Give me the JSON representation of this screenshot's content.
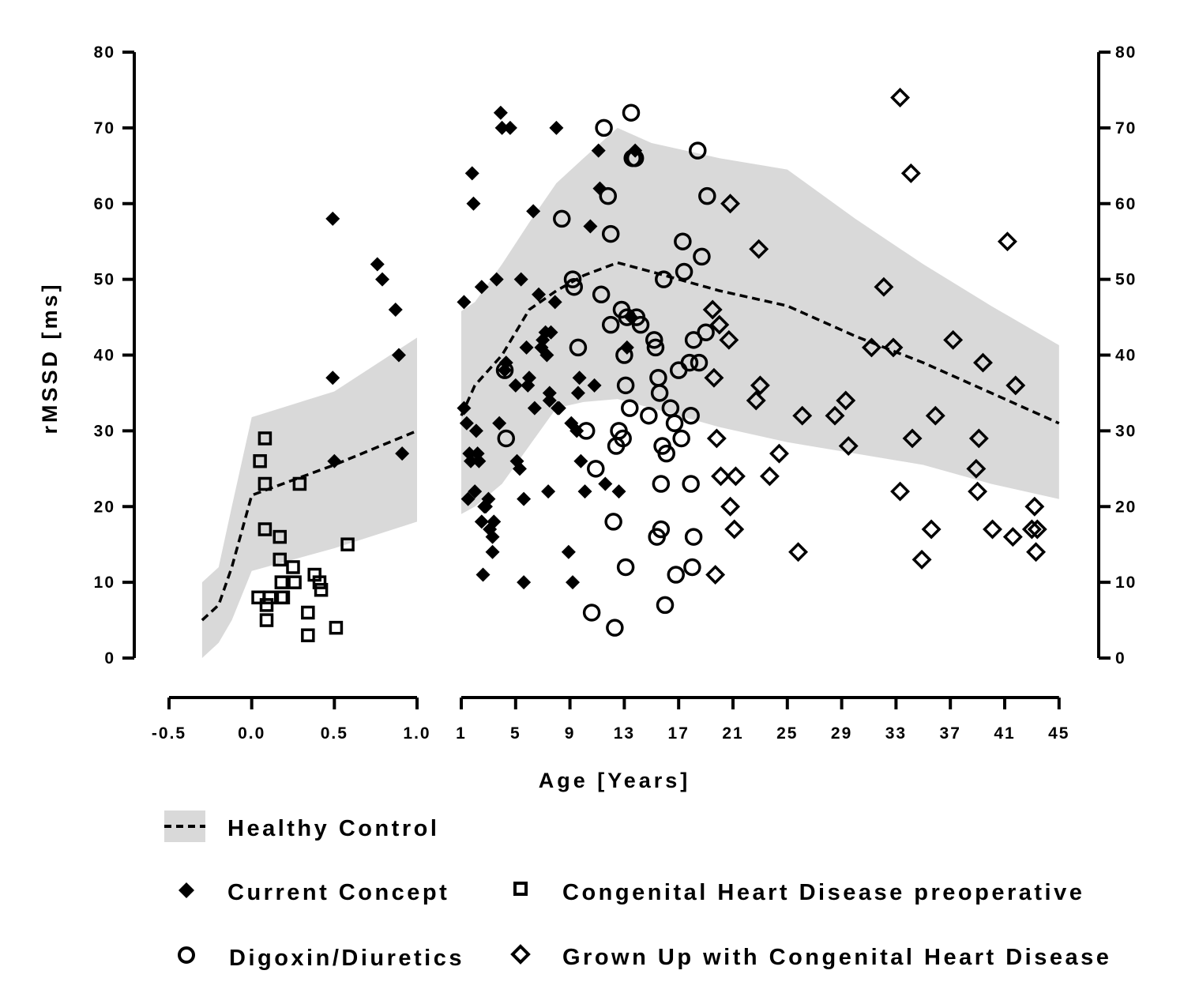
{
  "chart_data": {
    "type": "scatter",
    "ylabel": "rMSSD [ms]",
    "xlabel": "Age [Years]",
    "ylim": [
      0,
      80
    ],
    "y_ticks": [
      "0",
      "10",
      "20",
      "30",
      "40",
      "50",
      "60",
      "70",
      "80"
    ],
    "x_segments": [
      {
        "id": "infant",
        "range": [
          -0.5,
          1.0
        ],
        "ticks": [
          "-0.5",
          "0.0",
          "0.5",
          "1.0"
        ],
        "tick_values": [
          -0.5,
          0.0,
          0.5,
          1.0
        ]
      },
      {
        "id": "child_adult",
        "range": [
          1,
          45
        ],
        "ticks": [
          "1",
          "5",
          "9",
          "13",
          "17",
          "21",
          "25",
          "29",
          "33",
          "37",
          "41",
          "45"
        ],
        "tick_values": [
          1,
          5,
          9,
          13,
          17,
          21,
          25,
          29,
          33,
          37,
          41,
          45
        ]
      }
    ],
    "grid": false,
    "legend_position": "bottom",
    "healthy_control": {
      "name": "Healthy Control",
      "color": "#d9d9d9",
      "infant": {
        "x": [
          -0.3,
          -0.2,
          -0.12,
          0.0,
          0.5,
          1.0
        ],
        "mean": [
          5,
          7,
          12,
          21.5,
          25.5,
          30
        ],
        "upper": [
          10,
          12,
          20,
          31.8,
          35.2,
          42.3
        ],
        "lower": [
          0,
          2,
          5,
          11.5,
          14.5,
          18
        ]
      },
      "child": {
        "x": [
          1,
          2,
          4,
          6,
          8,
          10,
          12.5,
          15,
          20,
          25,
          30,
          35,
          40,
          45
        ],
        "mean": [
          32,
          36,
          40,
          46,
          48.5,
          50.5,
          52.2,
          51,
          48.5,
          46.5,
          42.5,
          39,
          35,
          31
        ],
        "upper": [
          45.8,
          47,
          52,
          57.5,
          62.7,
          66,
          70,
          68,
          66,
          64.5,
          58,
          52,
          46.5,
          41.3
        ],
        "lower": [
          19,
          20,
          23,
          28,
          33,
          33.8,
          34.2,
          33,
          30.5,
          28.5,
          27,
          25.5,
          23,
          21
        ]
      }
    },
    "series": [
      {
        "name": "Current Concept",
        "marker": "diamond-filled",
        "segment": "mixed",
        "infant_x": [
          0.49,
          0.49,
          0.5,
          0.76,
          0.79,
          0.87,
          0.89,
          0.91
        ],
        "infant_y": [
          58,
          37,
          26,
          52,
          50,
          46,
          40,
          27
        ],
        "x": [
          1.2,
          1.2,
          1.4,
          1.5,
          1.6,
          1.7,
          1.8,
          1.9,
          2.0,
          2.1,
          2.2,
          2.3,
          2.5,
          2.5,
          2.6,
          2.7,
          2.8,
          3.0,
          3.1,
          3.3,
          3.3,
          3.4,
          3.6,
          3.8,
          3.9,
          4.0,
          4.2,
          4.3,
          4.6,
          5.0,
          5.1,
          5.3,
          5.4,
          5.6,
          5.6,
          5.8,
          5.9,
          6.0,
          6.3,
          6.4,
          6.7,
          6.9,
          7.0,
          7.2,
          7.3,
          7.4,
          7.5,
          7.5,
          7.6,
          7.9,
          8.0,
          8.1,
          8.2,
          8.9,
          9.1,
          9.2,
          9.5,
          9.6,
          9.7,
          9.8,
          10.1,
          10.5,
          10.8,
          11.1,
          11.2,
          11.6,
          12.6,
          13.2,
          13.5,
          13.8
        ],
        "y": [
          47,
          33,
          31,
          21,
          27,
          26,
          64,
          60,
          22,
          30,
          27,
          26,
          49,
          18,
          11,
          20,
          20,
          21,
          17,
          16,
          14,
          18,
          50,
          31,
          72,
          70,
          38,
          39,
          70,
          36,
          26,
          25,
          50,
          21,
          10,
          41,
          36,
          37,
          59,
          33,
          48,
          41,
          42,
          43,
          40,
          22,
          35,
          34,
          43,
          47,
          70,
          33,
          33,
          14,
          31,
          10,
          30,
          35,
          37,
          26,
          22,
          57,
          36,
          67,
          62,
          23,
          22,
          41,
          45,
          67
        ]
      },
      {
        "name": "Congenital Heart Disease preoperative",
        "marker": "square-open",
        "segment": "infant",
        "x": [
          0.04,
          0.05,
          0.08,
          0.08,
          0.08,
          0.09,
          0.09,
          0.11,
          0.17,
          0.17,
          0.18,
          0.18,
          0.19,
          0.25,
          0.26,
          0.29,
          0.34,
          0.34,
          0.38,
          0.41,
          0.42,
          0.51,
          0.58
        ],
        "y": [
          8,
          26,
          29,
          23,
          17,
          7,
          5,
          8,
          16,
          13,
          10,
          8,
          8,
          12,
          10,
          23,
          6,
          3,
          11,
          10,
          9,
          4,
          15
        ]
      },
      {
        "name": "Digoxin/Diuretics",
        "marker": "circle-open",
        "segment": "child_adult",
        "x": [
          4.2,
          4.3,
          8.4,
          9.2,
          9.3,
          9.6,
          10.2,
          10.6,
          10.9,
          11.3,
          11.5,
          11.8,
          12.0,
          12.0,
          12.2,
          12.3,
          12.4,
          12.6,
          12.8,
          12.9,
          13.0,
          13.1,
          13.1,
          13.2,
          13.4,
          13.5,
          13.6,
          13.8,
          13.9,
          14.2,
          14.8,
          15.2,
          15.3,
          15.4,
          15.5,
          15.6,
          15.7,
          15.7,
          15.8,
          15.9,
          16.0,
          16.1,
          16.4,
          16.7,
          16.8,
          17.0,
          17.2,
          17.3,
          17.4,
          17.8,
          17.9,
          17.9,
          18.0,
          18.1,
          18.1,
          18.4,
          18.5,
          18.7,
          19.0,
          19.1
        ],
        "y": [
          38,
          29,
          58,
          50,
          49,
          41,
          30,
          6,
          25,
          48,
          70,
          61,
          56,
          44,
          18,
          4,
          28,
          30,
          46,
          29,
          40,
          36,
          12,
          45,
          33,
          72,
          66,
          66,
          45,
          44,
          32,
          42,
          41,
          16,
          37,
          35,
          23,
          17,
          28,
          50,
          7,
          27,
          33,
          31,
          11,
          38,
          29,
          55,
          51,
          39,
          32,
          23,
          12,
          42,
          16,
          67,
          39,
          53,
          43,
          61
        ]
      },
      {
        "name": "Grown Up with Congenital Heart Disease",
        "marker": "diamond-open",
        "segment": "child_adult",
        "x": [
          19.5,
          19.6,
          19.7,
          19.8,
          20.0,
          20.1,
          20.7,
          20.8,
          20.8,
          21.1,
          21.2,
          22.7,
          22.9,
          23.0,
          23.7,
          24.4,
          25.8,
          26.1,
          28.5,
          29.3,
          29.5,
          31.2,
          32.1,
          32.8,
          33.3,
          33.3,
          34.1,
          34.2,
          34.9,
          35.6,
          35.9,
          37.2,
          38.9,
          39.0,
          39.1,
          39.4,
          40.1,
          41.2,
          41.6,
          41.8,
          43.0,
          43.2,
          43.3,
          43.4
        ],
        "y": [
          46,
          37,
          11,
          29,
          44,
          24,
          42,
          20,
          60,
          17,
          24,
          34,
          54,
          36,
          24,
          27,
          14,
          32,
          32,
          34,
          28,
          41,
          49,
          41,
          74,
          22,
          64,
          29,
          13,
          17,
          32,
          42,
          25,
          22,
          29,
          39,
          17,
          55,
          16,
          36,
          17,
          20,
          14,
          17
        ]
      }
    ]
  },
  "legend": {
    "healthy_control": "Healthy Control",
    "current_concept": "Current Concept",
    "chd_preoperative": "Congenital Heart Disease preoperative",
    "digoxin": "Digoxin/Diuretics",
    "guch": "Grown Up with Congenital Heart Disease"
  }
}
